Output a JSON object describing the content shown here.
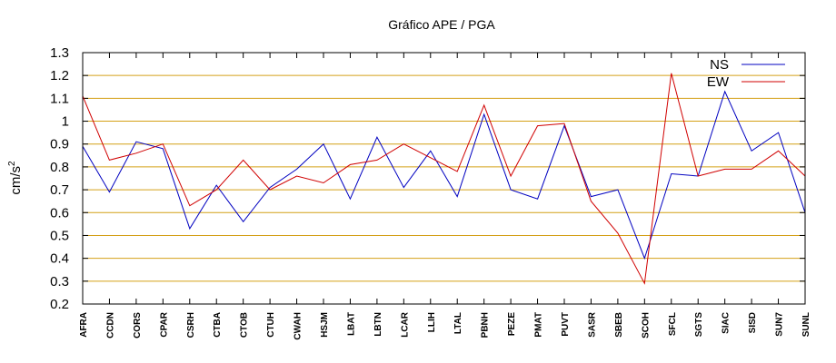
{
  "chart_data": {
    "type": "line",
    "title": "Gráfico  APE / PGA",
    "ylabel_main": "cm/s",
    "ylabel_sup": "2",
    "ylim": [
      0.2,
      1.3
    ],
    "yticks": [
      0.2,
      0.3,
      0.4,
      0.5,
      0.6,
      0.7,
      0.8,
      0.9,
      1,
      1.1,
      1.2,
      1.3
    ],
    "ytick_labels": [
      "0.2",
      "0.3",
      "0.4",
      "0.5",
      "0.6",
      "0.7",
      "0.8",
      "0.9",
      "1",
      "1.1",
      "1.2",
      "1.3"
    ],
    "grid": true,
    "grid_color": "#d4a017",
    "legend_position": "top-right",
    "categories": [
      "AFRA",
      "CCDN",
      "CORS",
      "CPAR",
      "CSRH",
      "CTBA",
      "CTOB",
      "CTUH",
      "CWAH",
      "HSJM",
      "LBAT",
      "LBTN",
      "LCAR",
      "LLIH",
      "LTAL",
      "PBNH",
      "PEZE",
      "PMAT",
      "PUVT",
      "SASR",
      "SBEB",
      "SCOH",
      "SFCL",
      "SGTS",
      "SIAC",
      "SISD",
      "SUN7",
      "SUNL"
    ],
    "series": [
      {
        "name": "NS",
        "color": "#0000c0",
        "values": [
          0.89,
          0.69,
          0.91,
          0.88,
          0.53,
          0.72,
          0.56,
          0.71,
          0.79,
          0.9,
          0.66,
          0.93,
          0.71,
          0.87,
          0.67,
          1.03,
          0.7,
          0.66,
          0.98,
          0.67,
          0.7,
          0.4,
          0.77,
          0.76,
          1.13,
          0.87,
          0.95,
          0.6
        ]
      },
      {
        "name": "EW",
        "color": "#d00000",
        "values": [
          1.11,
          0.83,
          0.86,
          0.9,
          0.63,
          0.7,
          0.83,
          0.7,
          0.76,
          0.73,
          0.81,
          0.83,
          0.9,
          0.84,
          0.78,
          1.07,
          0.76,
          0.98,
          0.99,
          0.65,
          0.51,
          0.29,
          1.21,
          0.76,
          0.79,
          0.79,
          0.87,
          0.76
        ]
      }
    ]
  }
}
